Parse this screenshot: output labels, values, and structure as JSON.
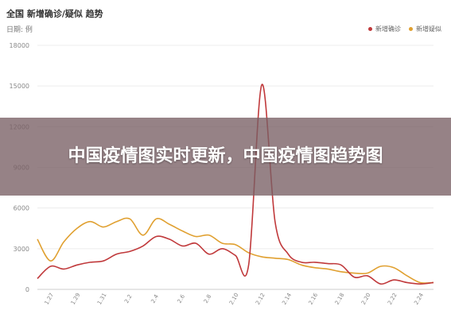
{
  "page": {
    "title": "全国 新增确诊/疑似 趋势",
    "unit_label": "日期: 例",
    "banner_text": "中国疫情图实时更新，中国疫情图趋势图"
  },
  "chart_data": {
    "type": "line",
    "title": "全国 新增确诊/疑似 趋势",
    "xlabel": "",
    "ylabel": "",
    "ylim": [
      0,
      18000
    ],
    "yticks": [
      0,
      3000,
      6000,
      9000,
      12000,
      15000,
      18000
    ],
    "x": [
      "1.26",
      "1.27",
      "1.28",
      "1.29",
      "1.30",
      "1.31",
      "2.1",
      "2.2",
      "2.3",
      "2.4",
      "2.5",
      "2.6",
      "2.7",
      "2.8",
      "2.9",
      "2.10",
      "2.11",
      "2.12",
      "2.13",
      "2.14",
      "2.15",
      "2.16",
      "2.17",
      "2.18",
      "2.19",
      "2.20",
      "2.21",
      "2.22",
      "2.23",
      "2.24",
      "2.25"
    ],
    "xtick_labels": [
      "1.27",
      "1.29",
      "1.31",
      "2.2",
      "2.4",
      "2.6",
      "2.8",
      "2.10",
      "2.12",
      "2.14",
      "2.16",
      "2.18",
      "2.20",
      "2.22",
      "2.24"
    ],
    "grid": true,
    "legend_position": "top-right",
    "series": [
      {
        "name": "新增确诊",
        "color": "#c0393b",
        "values": [
          800,
          1700,
          1500,
          1800,
          2000,
          2100,
          2600,
          2800,
          3200,
          3900,
          3700,
          3200,
          3400,
          2600,
          3000,
          2500,
          1800,
          15100,
          5000,
          2600,
          2000,
          2000,
          1900,
          1800,
          900,
          1000,
          400,
          700,
          500,
          400,
          500
        ]
      },
      {
        "name": "新增疑似",
        "color": "#e0a030",
        "values": [
          3700,
          2100,
          3500,
          4500,
          5000,
          4600,
          5000,
          5200,
          4000,
          5200,
          4800,
          4300,
          3900,
          4000,
          3400,
          3300,
          2700,
          2400,
          2300,
          2200,
          1800,
          1600,
          1500,
          1300,
          1200,
          1200,
          1700,
          1600,
          1000,
          500,
          500
        ]
      }
    ]
  }
}
